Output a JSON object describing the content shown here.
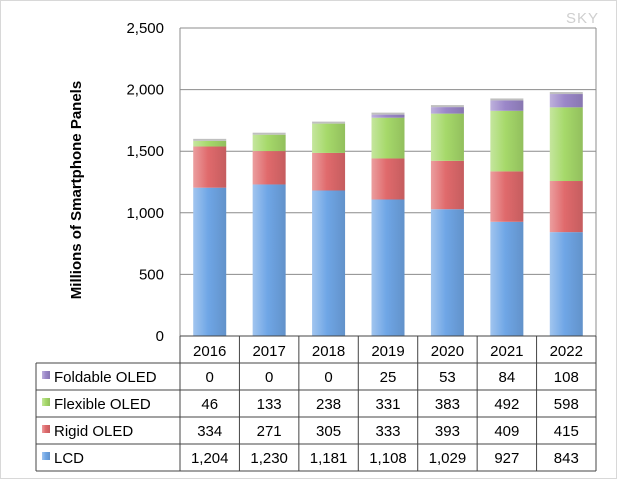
{
  "watermark": "SKY",
  "chart_data": {
    "type": "bar",
    "stacked": true,
    "categories": [
      "2016",
      "2017",
      "2018",
      "2019",
      "2020",
      "2021",
      "2022"
    ],
    "series": [
      {
        "name": "LCD",
        "values": [
          1204,
          1230,
          1181,
          1108,
          1029,
          927,
          843
        ],
        "color": "#6fa6e6",
        "value_labels": [
          "1,204",
          "1,230",
          "1,181",
          "1,108",
          "1,029",
          "927",
          "843"
        ]
      },
      {
        "name": "Rigid OLED",
        "values": [
          334,
          271,
          305,
          333,
          393,
          409,
          415
        ],
        "color": "#e06a6c",
        "value_labels": [
          "334",
          "271",
          "305",
          "333",
          "393",
          "409",
          "415"
        ]
      },
      {
        "name": "Flexible OLED",
        "values": [
          46,
          133,
          238,
          331,
          383,
          492,
          598
        ],
        "color": "#a6d96a",
        "value_labels": [
          "46",
          "133",
          "238",
          "331",
          "383",
          "492",
          "598"
        ]
      },
      {
        "name": "Foldable OLED",
        "values": [
          0,
          0,
          0,
          25,
          53,
          84,
          108
        ],
        "color": "#9b87c9",
        "value_labels": [
          "0",
          "0",
          "0",
          "25",
          "53",
          "84",
          "108"
        ]
      }
    ],
    "ylabel": "Millions of Smartphone Panels",
    "ylim": [
      0,
      2500
    ],
    "yticks": [
      0,
      500,
      1000,
      1500,
      2000,
      2500
    ],
    "ytick_labels": [
      "0",
      "500",
      "1,000",
      "1,500",
      "2,000",
      "2,500"
    ],
    "grid": true,
    "legend": "data table below chart"
  }
}
